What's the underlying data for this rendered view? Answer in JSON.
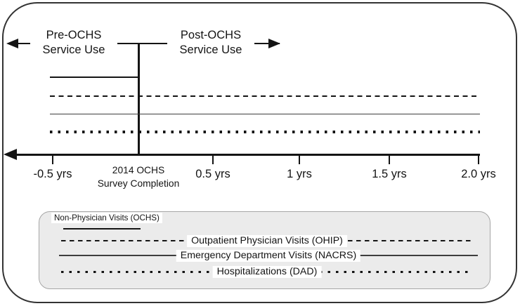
{
  "header": {
    "pre_label": "Pre-OCHS\nService Use",
    "post_label": "Post-OCHS\nService Use"
  },
  "timeline": {
    "origin_label": "2014 OCHS\nSurvey Completion",
    "ticks": [
      {
        "label": "-0.5 yrs"
      },
      {
        "label": "0.5 yrs"
      },
      {
        "label": "1 yrs"
      },
      {
        "label": "1.5 yrs"
      },
      {
        "label": "2.0 yrs"
      }
    ]
  },
  "series": [
    {
      "label": "Non-Physician Visits (OCHS)",
      "line_style": "solid-thick",
      "coverage": "pre-only"
    },
    {
      "label": "Outpatient Physician Visits (OHIP)",
      "line_style": "dashed",
      "coverage": "pre-and-post"
    },
    {
      "label": "Emergency Department Visits (NACRS)",
      "line_style": "solid-thin",
      "coverage": "pre-and-post"
    },
    {
      "label": "Hospitalizations (DAD)",
      "line_style": "dotted",
      "coverage": "pre-and-post"
    }
  ],
  "colors": {
    "ink": "#141414",
    "thin_line": "#3d3d3d",
    "legend_bg": "#ebebeb",
    "legend_border": "#a6a6a6",
    "background": "#ffffff"
  }
}
